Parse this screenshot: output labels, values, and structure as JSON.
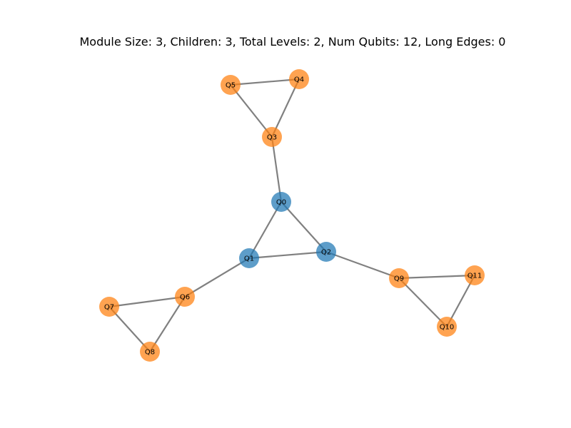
{
  "title": "Module Size: 3, Children: 3, Total Levels: 2, Num Qubits: 12, Long Edges: 0",
  "colors": {
    "root": "#1f77b4",
    "child": "#ff7f0e",
    "edge": "#808080"
  },
  "nodes": [
    {
      "id": "Q0",
      "label": "Q0",
      "group": "root"
    },
    {
      "id": "Q1",
      "label": "Q1",
      "group": "root"
    },
    {
      "id": "Q2",
      "label": "Q2",
      "group": "root"
    },
    {
      "id": "Q3",
      "label": "Q3",
      "group": "child"
    },
    {
      "id": "Q4",
      "label": "Q4",
      "group": "child"
    },
    {
      "id": "Q5",
      "label": "Q5",
      "group": "child"
    },
    {
      "id": "Q6",
      "label": "Q6",
      "group": "child"
    },
    {
      "id": "Q7",
      "label": "Q7",
      "group": "child"
    },
    {
      "id": "Q8",
      "label": "Q8",
      "group": "child"
    },
    {
      "id": "Q9",
      "label": "Q9",
      "group": "child"
    },
    {
      "id": "Q10",
      "label": "Q10",
      "group": "child"
    },
    {
      "id": "Q11",
      "label": "Q11",
      "group": "child"
    }
  ],
  "edges": [
    [
      "Q0",
      "Q1"
    ],
    [
      "Q0",
      "Q2"
    ],
    [
      "Q1",
      "Q2"
    ],
    [
      "Q0",
      "Q3"
    ],
    [
      "Q3",
      "Q4"
    ],
    [
      "Q3",
      "Q5"
    ],
    [
      "Q4",
      "Q5"
    ],
    [
      "Q1",
      "Q6"
    ],
    [
      "Q6",
      "Q7"
    ],
    [
      "Q6",
      "Q8"
    ],
    [
      "Q7",
      "Q8"
    ],
    [
      "Q2",
      "Q9"
    ],
    [
      "Q9",
      "Q10"
    ],
    [
      "Q9",
      "Q11"
    ],
    [
      "Q10",
      "Q11"
    ]
  ]
}
